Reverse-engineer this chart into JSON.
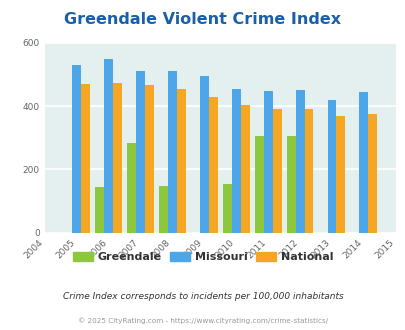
{
  "title": "Greendale Violent Crime Index",
  "years": [
    2004,
    2005,
    2006,
    2007,
    2008,
    2009,
    2010,
    2011,
    2012,
    2013,
    2014,
    2015
  ],
  "bar_years": [
    2005,
    2006,
    2007,
    2008,
    2009,
    2010,
    2011,
    2012,
    2013,
    2014
  ],
  "greendale": [
    null,
    145,
    285,
    148,
    null,
    153,
    305,
    305,
    null,
    null
  ],
  "missouri": [
    530,
    550,
    510,
    510,
    495,
    453,
    448,
    450,
    420,
    445
  ],
  "national": [
    470,
    473,
    467,
    453,
    428,
    404,
    390,
    390,
    368,
    375
  ],
  "ylim": [
    0,
    600
  ],
  "yticks": [
    0,
    200,
    400,
    600
  ],
  "color_greendale": "#8dc63f",
  "color_missouri": "#4da6e8",
  "color_national": "#f5a623",
  "bg_color": "#e4f0f0",
  "title_color": "#1a5fa8",
  "subtitle": "Crime Index corresponds to incidents per 100,000 inhabitants",
  "footer": "© 2025 CityRating.com - https://www.cityrating.com/crime-statistics/",
  "bar_width": 0.28,
  "legend_labels": [
    "Greendale",
    "Missouri",
    "National"
  ]
}
